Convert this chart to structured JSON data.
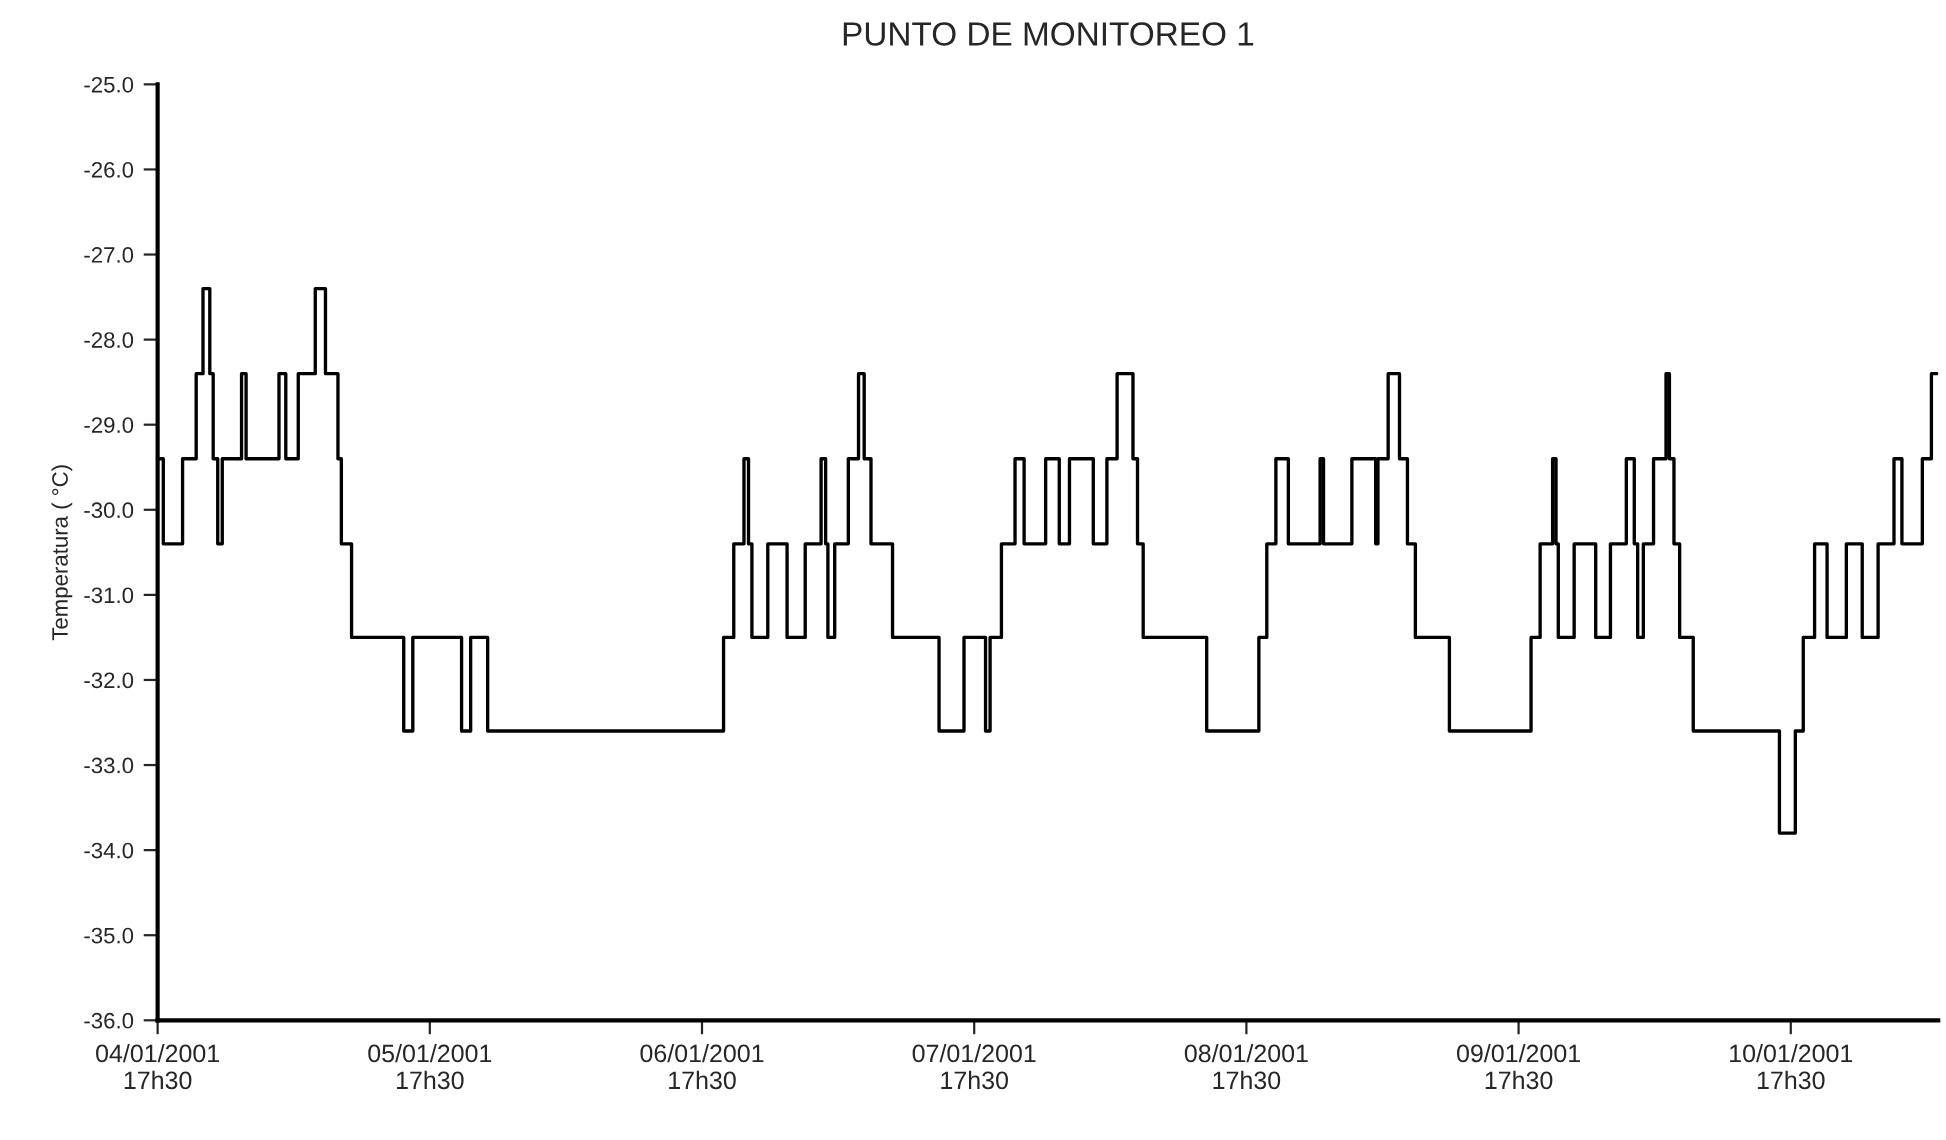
{
  "chart_data": {
    "type": "step",
    "title": "PUNTO DE MONITOREO 1",
    "ylabel": "Temperatura ( °C)",
    "x": [
      "2001-01-04T17:30",
      "2001-01-04T18:00",
      "2001-01-04T19:42",
      "2001-01-04T20:54",
      "2001-01-04T21:30",
      "2001-01-04T22:06",
      "2001-01-04T22:24",
      "2001-01-04T22:48",
      "2001-01-04T23:12",
      "2001-01-05T00:54",
      "2001-01-05T01:18",
      "2001-01-05T04:12",
      "2001-01-05T04:48",
      "2001-01-05T05:54",
      "2001-01-05T07:24",
      "2001-01-05T08:18",
      "2001-01-05T09:24",
      "2001-01-05T09:42",
      "2001-01-05T10:36",
      "2001-01-05T15:12",
      "2001-01-05T16:00",
      "2001-01-05T20:18",
      "2001-01-05T21:06",
      "2001-01-05T22:36",
      "2001-01-06T19:24",
      "2001-01-06T20:18",
      "2001-01-06T21:12",
      "2001-01-06T21:36",
      "2001-01-06T21:54",
      "2001-01-06T23:18",
      "2001-01-07T01:00",
      "2001-01-07T02:36",
      "2001-01-07T04:00",
      "2001-01-07T04:24",
      "2001-01-07T04:36",
      "2001-01-07T05:12",
      "2001-01-07T06:24",
      "2001-01-07T07:18",
      "2001-01-07T07:48",
      "2001-01-07T08:24",
      "2001-01-07T10:18",
      "2001-01-07T14:24",
      "2001-01-07T16:36",
      "2001-01-07T18:30",
      "2001-01-07T18:54",
      "2001-01-07T19:54",
      "2001-01-07T21:06",
      "2001-01-07T21:54",
      "2001-01-07T23:48",
      "2001-01-08T01:00",
      "2001-01-08T01:54",
      "2001-01-08T04:00",
      "2001-01-08T05:12",
      "2001-01-08T06:06",
      "2001-01-08T07:30",
      "2001-01-08T07:54",
      "2001-01-08T08:24",
      "2001-01-08T14:00",
      "2001-01-08T18:36",
      "2001-01-08T19:18",
      "2001-01-08T20:06",
      "2001-01-08T21:12",
      "2001-01-09T00:00",
      "2001-01-09T00:18",
      "2001-01-09T02:48",
      "2001-01-09T04:54",
      "2001-01-09T05:06",
      "2001-01-09T06:00",
      "2001-01-09T07:00",
      "2001-01-09T07:42",
      "2001-01-09T08:24",
      "2001-01-09T11:24",
      "2001-01-09T18:36",
      "2001-01-09T19:24",
      "2001-01-09T20:30",
      "2001-01-09T20:48",
      "2001-01-09T21:00",
      "2001-01-09T22:24",
      "2001-01-10T00:18",
      "2001-01-10T01:36",
      "2001-01-10T03:00",
      "2001-01-10T03:42",
      "2001-01-10T04:00",
      "2001-01-10T04:30",
      "2001-01-10T05:24",
      "2001-01-10T06:30",
      "2001-01-10T06:48",
      "2001-01-10T07:12",
      "2001-01-10T07:42",
      "2001-01-10T08:54",
      "2001-01-10T16:30",
      "2001-01-10T17:54",
      "2001-01-10T18:36",
      "2001-01-10T19:36",
      "2001-01-10T20:42",
      "2001-01-10T22:24",
      "2001-01-10T23:48",
      "2001-01-11T01:12",
      "2001-01-11T02:36",
      "2001-01-11T03:18",
      "2001-01-11T05:06",
      "2001-01-11T05:54",
      "2001-01-11T06:24"
    ],
    "series": [
      {
        "color": "#000000",
        "values": [
          -29.4,
          -30.4,
          -29.4,
          -28.4,
          -27.4,
          -28.4,
          -29.4,
          -30.4,
          -29.4,
          -28.4,
          -29.4,
          -28.4,
          -29.4,
          -28.4,
          -27.4,
          -28.4,
          -29.4,
          -30.4,
          -31.5,
          -32.6,
          -31.5,
          -32.6,
          -31.5,
          -32.6,
          -31.5,
          -30.4,
          -29.4,
          -30.4,
          -31.5,
          -30.4,
          -31.5,
          -30.4,
          -29.4,
          -30.4,
          -31.5,
          -30.4,
          -29.4,
          -28.4,
          -29.4,
          -30.4,
          -31.5,
          -32.6,
          -31.5,
          -32.6,
          -31.5,
          -30.4,
          -29.4,
          -30.4,
          -29.4,
          -30.4,
          -29.4,
          -30.4,
          -29.4,
          -28.4,
          -29.4,
          -30.4,
          -31.5,
          -32.6,
          -31.5,
          -30.4,
          -29.4,
          -30.4,
          -29.4,
          -30.4,
          -29.4,
          -30.4,
          -29.4,
          -28.4,
          -29.4,
          -30.4,
          -31.5,
          -32.6,
          -31.5,
          -30.4,
          -29.4,
          -30.4,
          -31.5,
          -30.4,
          -31.5,
          -30.4,
          -29.4,
          -30.4,
          -31.5,
          -30.4,
          -29.4,
          -28.4,
          -29.4,
          -30.4,
          -31.5,
          -32.6,
          -33.8,
          -32.6,
          -31.5,
          -30.4,
          -31.5,
          -30.4,
          -31.5,
          -30.4,
          -29.4,
          -30.4,
          -29.4,
          -28.4,
          -28.4
        ]
      }
    ],
    "xlim": [
      "2001-01-04T17:30",
      "2001-01-11T06:30"
    ],
    "xticks": [
      {
        "value": "2001-01-04T17:30",
        "label": "04/01/2001\n17h30"
      },
      {
        "value": "2001-01-05T17:30",
        "label": "05/01/2001\n17h30"
      },
      {
        "value": "2001-01-06T17:30",
        "label": "06/01/2001\n17h30"
      },
      {
        "value": "2001-01-07T17:30",
        "label": "07/01/2001\n17h30"
      },
      {
        "value": "2001-01-08T17:30",
        "label": "08/01/2001\n17h30"
      },
      {
        "value": "2001-01-09T17:30",
        "label": "09/01/2001\n17h30"
      },
      {
        "value": "2001-01-10T17:30",
        "label": "10/01/2001\n17h30"
      }
    ],
    "ylim": [
      -36,
      -25
    ],
    "yticks": [
      {
        "value": -25,
        "label": "-25.0"
      },
      {
        "value": -26,
        "label": "-26.0"
      },
      {
        "value": -27,
        "label": "-27.0"
      },
      {
        "value": -28,
        "label": "-28.0"
      },
      {
        "value": -29,
        "label": "-29.0"
      },
      {
        "value": -30,
        "label": "-30.0"
      },
      {
        "value": -31,
        "label": "-31.0"
      },
      {
        "value": -32,
        "label": "-32.0"
      },
      {
        "value": -33,
        "label": "-33.0"
      },
      {
        "value": -34,
        "label": "-34.0"
      },
      {
        "value": -35,
        "label": "-35.0"
      },
      {
        "value": -36,
        "label": "-36.0"
      }
    ],
    "grid": false,
    "legend": false
  }
}
